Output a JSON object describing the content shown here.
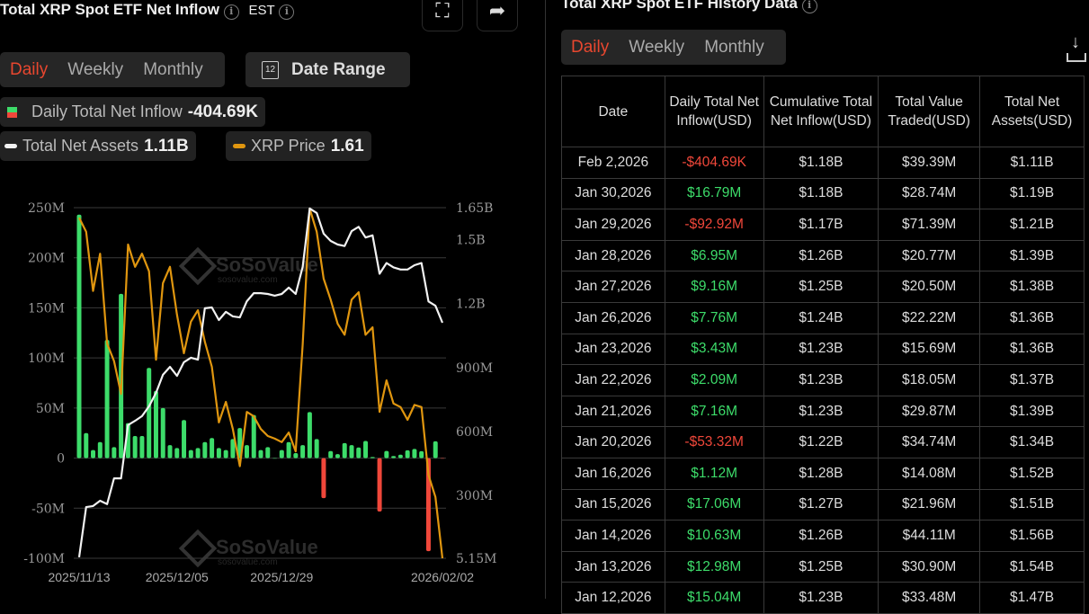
{
  "left": {
    "title": "Total XRP Spot ETF Net Inflow",
    "timezone": "EST",
    "tabs": [
      "Daily",
      "Weekly",
      "Monthly"
    ],
    "active_tab": "Daily",
    "date_range_label": "Date Range",
    "calendar_day": "12",
    "legend": [
      {
        "label": "Daily Total Net Inflow",
        "value": "-404.69K"
      },
      {
        "label": "Total Net Assets",
        "value": "1.11B"
      },
      {
        "label": "XRP Price",
        "value": "1.61"
      }
    ]
  },
  "watermark": {
    "brand": "SoSoValue",
    "url": "sosovalue.com"
  },
  "right": {
    "title": "Total XRP Spot ETF History Data",
    "tabs": [
      "Daily",
      "Weekly",
      "Monthly"
    ],
    "active_tab": "Daily",
    "columns": [
      "Date",
      "Daily Total Net Inflow(USD)",
      "Cumulative Total Net Inflow(USD)",
      "Total Value Traded(USD)",
      "Total Net Assets(USD)"
    ],
    "rows": [
      [
        "Feb 2,2026",
        "-$404.69K",
        "$1.18B",
        "$39.39M",
        "$1.11B"
      ],
      [
        "Jan 30,2026",
        "$16.79M",
        "$1.18B",
        "$28.74M",
        "$1.19B"
      ],
      [
        "Jan 29,2026",
        "-$92.92M",
        "$1.17B",
        "$71.39M",
        "$1.21B"
      ],
      [
        "Jan 28,2026",
        "$6.95M",
        "$1.26B",
        "$20.77M",
        "$1.39B"
      ],
      [
        "Jan 27,2026",
        "$9.16M",
        "$1.25B",
        "$20.50M",
        "$1.38B"
      ],
      [
        "Jan 26,2026",
        "$7.76M",
        "$1.24B",
        "$22.22M",
        "$1.36B"
      ],
      [
        "Jan 23,2026",
        "$3.43M",
        "$1.23B",
        "$15.69M",
        "$1.36B"
      ],
      [
        "Jan 22,2026",
        "$2.09M",
        "$1.23B",
        "$18.05M",
        "$1.37B"
      ],
      [
        "Jan 21,2026",
        "$7.16M",
        "$1.23B",
        "$29.87M",
        "$1.39B"
      ],
      [
        "Jan 20,2026",
        "-$53.32M",
        "$1.22B",
        "$34.74M",
        "$1.34B"
      ],
      [
        "Jan 16,2026",
        "$1.12M",
        "$1.28B",
        "$14.08M",
        "$1.52B"
      ],
      [
        "Jan 15,2026",
        "$17.06M",
        "$1.27B",
        "$21.96M",
        "$1.51B"
      ],
      [
        "Jan 14,2026",
        "$10.63M",
        "$1.26B",
        "$44.11M",
        "$1.56B"
      ],
      [
        "Jan 13,2026",
        "$12.98M",
        "$1.25B",
        "$30.90M",
        "$1.54B"
      ],
      [
        "Jan 12,2026",
        "$15.04M",
        "$1.23B",
        "$33.48M",
        "$1.47B"
      ]
    ]
  },
  "colors": {
    "positive": "#3ddc6a",
    "negative": "#f0473a",
    "assets": "#f2f2f2",
    "price": "#e0960f",
    "accent": "#e8472f"
  },
  "chart_data": {
    "type": "bar+line",
    "x_tick_labels": [
      "2025/11/13",
      "2025/12/05",
      "2025/12/29",
      "2026/02/02"
    ],
    "left_axis": {
      "ticks": [
        "250M",
        "200M",
        "150M",
        "100M",
        "50M",
        "0",
        "-50M",
        "-100M"
      ],
      "range": [
        -100,
        250
      ],
      "unit": "M USD"
    },
    "right_axis": {
      "ticks": [
        "1.65B",
        "1.5B",
        "1.2B",
        "900M",
        "600M",
        "300M",
        "5.15M"
      ],
      "range": [
        5.15,
        1650
      ],
      "unit": "M USD"
    },
    "price_range": [
      1.61,
      2.41
    ],
    "grid": true,
    "dates": [
      "2025-11-13",
      "2025-11-14",
      "2025-11-17",
      "2025-11-18",
      "2025-11-19",
      "2025-11-20",
      "2025-11-21",
      "2025-11-24",
      "2025-11-25",
      "2025-11-26",
      "2025-12-01",
      "2025-12-02",
      "2025-12-03",
      "2025-12-04",
      "2025-12-05",
      "2025-12-08",
      "2025-12-09",
      "2025-12-10",
      "2025-12-11",
      "2025-12-12",
      "2025-12-15",
      "2025-12-16",
      "2025-12-17",
      "2025-12-18",
      "2025-12-19",
      "2025-12-22",
      "2025-12-23",
      "2025-12-24",
      "2025-12-26",
      "2025-12-29",
      "2025-12-30",
      "2025-12-31",
      "2026-01-02",
      "2026-01-05",
      "2026-01-06",
      "2026-01-07",
      "2026-01-08",
      "2026-01-09",
      "2026-01-12",
      "2026-01-13",
      "2026-01-14",
      "2026-01-15",
      "2026-01-16",
      "2026-01-20",
      "2026-01-21",
      "2026-01-22",
      "2026-01-23",
      "2026-01-26",
      "2026-01-27",
      "2026-01-28",
      "2026-01-29",
      "2026-01-30",
      "2026-02-02"
    ],
    "series": [
      {
        "name": "Daily Total Net Inflow",
        "axis": "left",
        "values": [
          243,
          25,
          8,
          16,
          118,
          11,
          164,
          35,
          22,
          22,
          90,
          67,
          50,
          13,
          10,
          38,
          8,
          10,
          16,
          20,
          10,
          8,
          19,
          30,
          13,
          43,
          8,
          11,
          0,
          8,
          16,
          5,
          13,
          46,
          19,
          -40,
          7,
          4,
          15.04,
          12.98,
          10.63,
          17.06,
          1.12,
          -53.32,
          7.16,
          2.09,
          3.43,
          7.76,
          9.16,
          6.95,
          -92.92,
          16.79,
          -0.4
        ]
      },
      {
        "name": "Total Net Assets",
        "axis": "right",
        "values": [
          10,
          245,
          250,
          275,
          259,
          380,
          380,
          630,
          650,
          672,
          718,
          781,
          866,
          903,
          861,
          925,
          946,
          937,
          1178,
          1182,
          1123,
          1161,
          1140,
          1135,
          1211,
          1249,
          1249,
          1245,
          1237,
          1245,
          1275,
          1245,
          1372,
          1646,
          1625,
          1528,
          1494,
          1477,
          1470,
          1540,
          1560,
          1510,
          1520,
          1340,
          1390,
          1370,
          1360,
          1360,
          1380,
          1390,
          1210,
          1190,
          1110
        ]
      },
      {
        "name": "XRP Price",
        "axis": "price",
        "values": [
          2.387,
          2.355,
          2.22,
          2.305,
          2.1,
          2.06,
          1.985,
          2.326,
          2.275,
          2.305,
          2.265,
          2.063,
          2.238,
          2.275,
          2.166,
          2.078,
          2.15,
          2.176,
          2.104,
          2.047,
          1.92,
          1.967,
          1.905,
          1.82,
          1.944,
          1.934,
          1.905,
          1.889,
          1.883,
          1.875,
          1.897,
          1.854,
          2.098,
          2.408,
          2.355,
          2.248,
          2.2,
          2.145,
          2.12,
          2.2,
          2.217,
          2.12,
          2.137,
          1.944,
          2.016,
          1.963,
          1.955,
          1.926,
          1.96,
          1.955,
          1.8,
          1.75,
          1.61
        ]
      }
    ]
  }
}
